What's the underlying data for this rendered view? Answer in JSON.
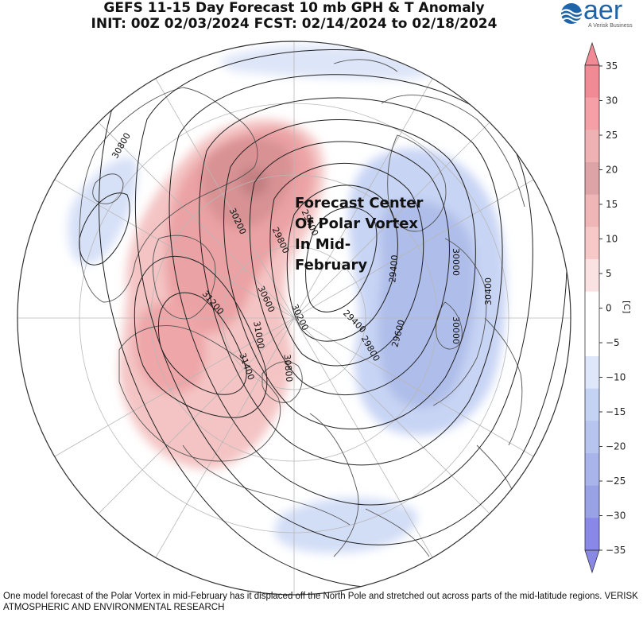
{
  "title_line1": "GEFS 11-15 Day Forecast 10 mb GPH & T Anomaly",
  "title_line2": "INIT: 00Z 02/03/2024     FCST: 02/14/2024 to 02/18/2024",
  "logo": {
    "word": "aer",
    "subtitle": "A Verisk Business",
    "icon": "aer-wave-logo-icon",
    "color": "#1d64a8"
  },
  "annotation": {
    "lines": [
      "Forecast Center",
      "Of Polar Vortex",
      "In Mid-",
      "February"
    ]
  },
  "contour_labels": [
    "30800",
    "30200",
    "29800",
    "29400",
    "29400",
    "30000",
    "31200",
    "30600",
    "30200",
    "29400",
    "29600",
    "30000",
    "30400",
    "31000",
    "29800",
    "31400",
    "30800"
  ],
  "colorbar": {
    "unit": "[C]",
    "ticks": [
      "35",
      "30",
      "25",
      "20",
      "15",
      "10",
      "5",
      "0",
      "−5",
      "−10",
      "−15",
      "−20",
      "−25",
      "−30",
      "−35"
    ],
    "colors": [
      "#f08a94",
      "#f4a0a6",
      "#eeb2b4",
      "#dca4a6",
      "#eeb6b7",
      "#f6c8c8",
      "#fbe2e2",
      "#ffffff",
      "#ffffff",
      "#dfe7fb",
      "#c4d2f4",
      "#b6c4ee",
      "#a8b4ea",
      "#9aa2e6",
      "#8a88e6"
    ]
  },
  "caption": "One model forecast of the Polar Vortex in mid-February has it displaced off the North Pole and stretched out across parts of the mid-latitude regions. VERISK ATMOSPHERIC AND ENVIRONMENTAL RESEARCH"
}
